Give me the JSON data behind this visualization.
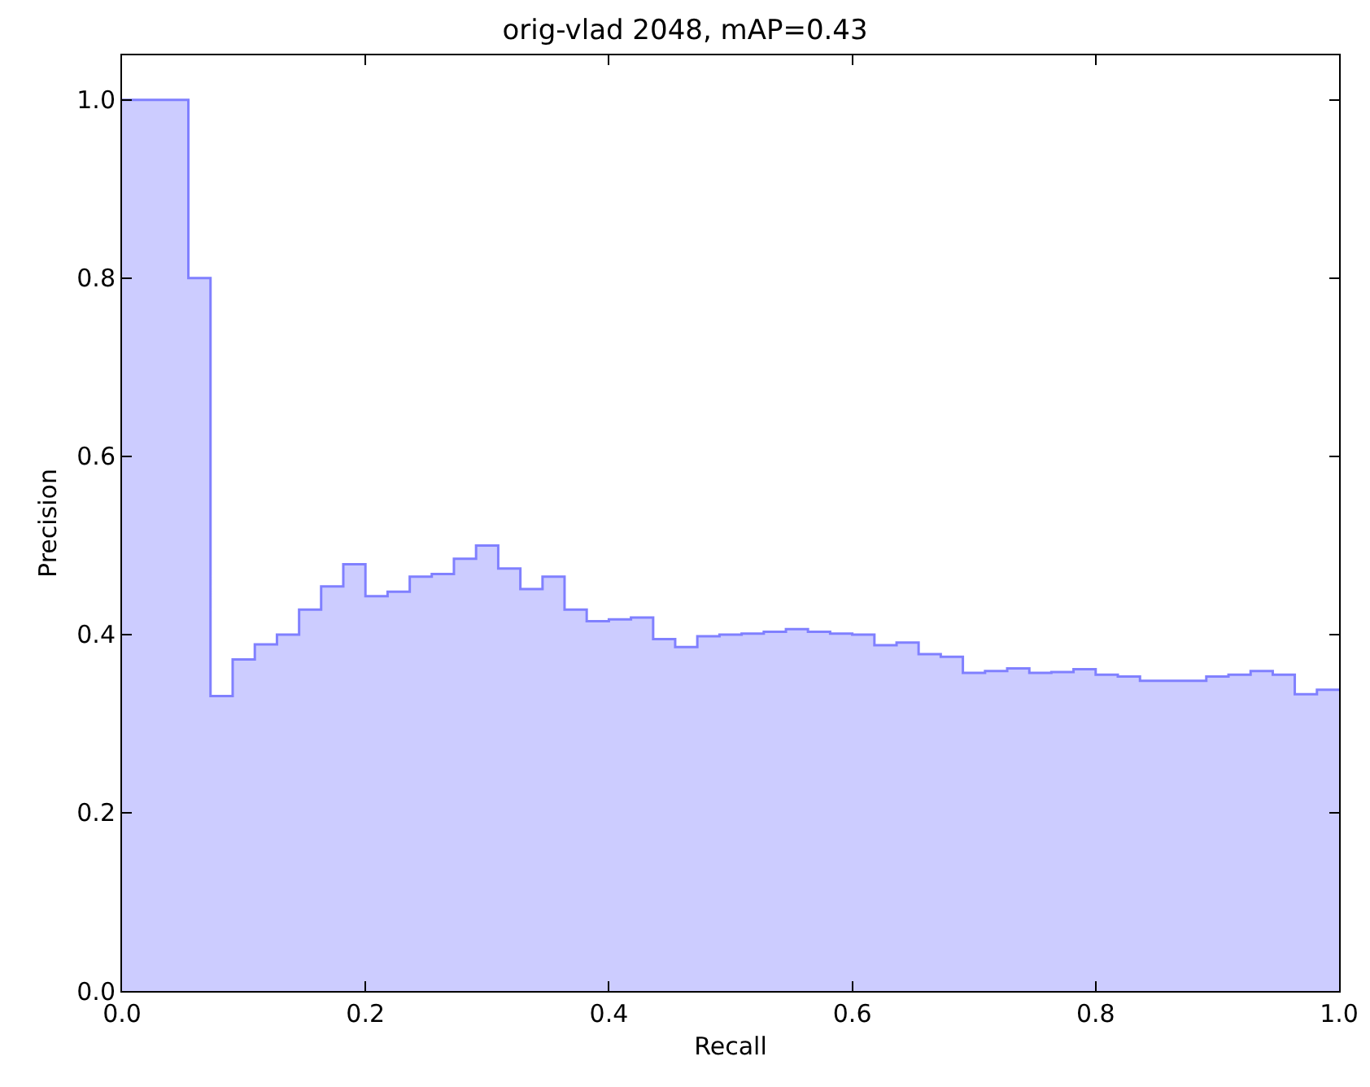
{
  "chart_data": {
    "type": "area",
    "title": "orig-vlad 2048, mAP=0.43",
    "xlabel": "Recall",
    "ylabel": "Precision",
    "x": [
      0,
      0.0545,
      0.0545,
      0.0727,
      0.0727,
      0.0909,
      0.0909,
      0.1091,
      0.1091,
      0.1273,
      0.1273,
      0.1455,
      0.1455,
      0.1636,
      0.1636,
      0.1818,
      0.1818,
      0.2,
      0.2,
      0.2182,
      0.2182,
      0.2364,
      0.2364,
      0.2545,
      0.2545,
      0.2727,
      0.2727,
      0.2909,
      0.2909,
      0.3091,
      0.3091,
      0.3273,
      0.3273,
      0.3455,
      0.3455,
      0.3636,
      0.3636,
      0.3818,
      0.3818,
      0.4,
      0.4,
      0.4182,
      0.4182,
      0.4364,
      0.4364,
      0.4545,
      0.4545,
      0.4727,
      0.4727,
      0.4909,
      0.4909,
      0.5091,
      0.5091,
      0.5273,
      0.5273,
      0.5455,
      0.5455,
      0.5636,
      0.5636,
      0.5818,
      0.5818,
      0.6,
      0.6,
      0.6182,
      0.6182,
      0.6364,
      0.6364,
      0.6545,
      0.6545,
      0.6727,
      0.6727,
      0.6909,
      0.6909,
      0.7091,
      0.7091,
      0.7273,
      0.7273,
      0.7455,
      0.7455,
      0.7636,
      0.7636,
      0.7818,
      0.7818,
      0.8,
      0.8,
      0.8182,
      0.8182,
      0.8364,
      0.8364,
      0.8545,
      0.8545,
      0.8727,
      0.8727,
      0.8909,
      0.8909,
      0.9091,
      0.9091,
      0.9273,
      0.9273,
      0.9455,
      0.9455,
      0.9636,
      0.9636,
      0.9818,
      0.9818,
      1
    ],
    "series": [
      {
        "color": "#8080ff",
        "values": [
          1,
          1,
          0.8,
          0.8,
          0.331,
          0.331,
          0.372,
          0.372,
          0.389,
          0.389,
          0.4,
          0.4,
          0.428,
          0.428,
          0.454,
          0.454,
          0.479,
          0.479,
          0.443,
          0.443,
          0.448,
          0.448,
          0.465,
          0.465,
          0.468,
          0.468,
          0.485,
          0.485,
          0.5,
          0.5,
          0.474,
          0.474,
          0.451,
          0.451,
          0.465,
          0.465,
          0.428,
          0.428,
          0.415,
          0.415,
          0.417,
          0.417,
          0.419,
          0.419,
          0.395,
          0.395,
          0.386,
          0.386,
          0.398,
          0.398,
          0.4,
          0.4,
          0.401,
          0.401,
          0.403,
          0.403,
          0.406,
          0.406,
          0.403,
          0.403,
          0.401,
          0.401,
          0.4,
          0.4,
          0.388,
          0.388,
          0.391,
          0.391,
          0.378,
          0.378,
          0.375,
          0.375,
          0.357,
          0.357,
          0.359,
          0.359,
          0.362,
          0.362,
          0.357,
          0.357,
          0.358,
          0.358,
          0.361,
          0.361,
          0.355,
          0.355,
          0.353,
          0.353,
          0.348,
          0.348,
          0.348,
          0.348,
          0.348,
          0.348,
          0.353,
          0.353,
          0.355,
          0.355,
          0.359,
          0.359,
          0.355,
          0.355,
          0.333,
          0.333,
          0.338,
          0.338
        ]
      }
    ],
    "xlim": [
      0,
      1
    ],
    "ylim": [
      0,
      1.05
    ],
    "xticks": [
      {
        "value": 0,
        "label": "0.0"
      },
      0.2,
      0.4,
      0.6,
      0.8,
      {
        "value": 1,
        "label": "1.0"
      }
    ],
    "yticks": [
      {
        "value": 0,
        "label": "0.0"
      },
      0.2,
      0.4,
      0.6,
      0.8,
      {
        "value": 1,
        "label": "1.0"
      }
    ],
    "grid": false
  }
}
